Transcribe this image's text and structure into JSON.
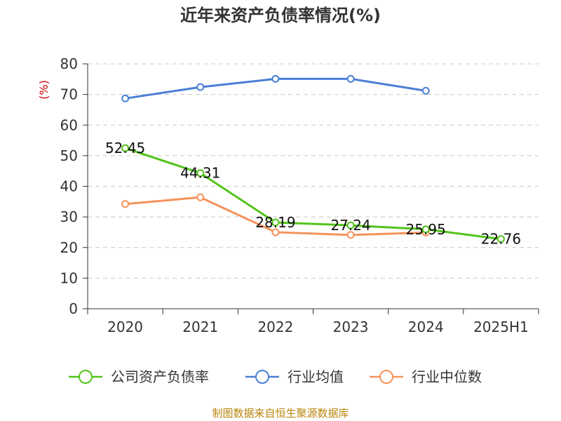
{
  "chart_data": {
    "type": "line",
    "title": "近年来资产负债率情况(%)",
    "ylabel": "(%)",
    "xlabel": "",
    "categories": [
      "2020",
      "2021",
      "2022",
      "2023",
      "2024",
      "2025H1"
    ],
    "ylim": [
      0,
      80
    ],
    "yticks": [
      0,
      10,
      20,
      30,
      40,
      50,
      60,
      70,
      80
    ],
    "grid": true,
    "legend_position": "bottom",
    "series": [
      {
        "name": "公司资产负债率",
        "color": "#52c41a",
        "values": [
          52.45,
          44.31,
          28.19,
          27.24,
          25.95,
          22.76
        ],
        "labels": [
          "52.45",
          "44.31",
          "28.19",
          "27.24",
          "25.95",
          "22.76"
        ],
        "show_labels": true
      },
      {
        "name": "行业均值",
        "color": "#4a7fd6",
        "values": [
          68.7,
          72.4,
          75.1,
          75.1,
          71.2,
          null
        ],
        "show_labels": false
      },
      {
        "name": "行业中位数",
        "color": "#f5925a",
        "values": [
          34.2,
          36.4,
          25.0,
          24.1,
          24.9,
          null
        ],
        "show_labels": false
      }
    ],
    "source": "制图数据来自恒生聚源数据库"
  }
}
